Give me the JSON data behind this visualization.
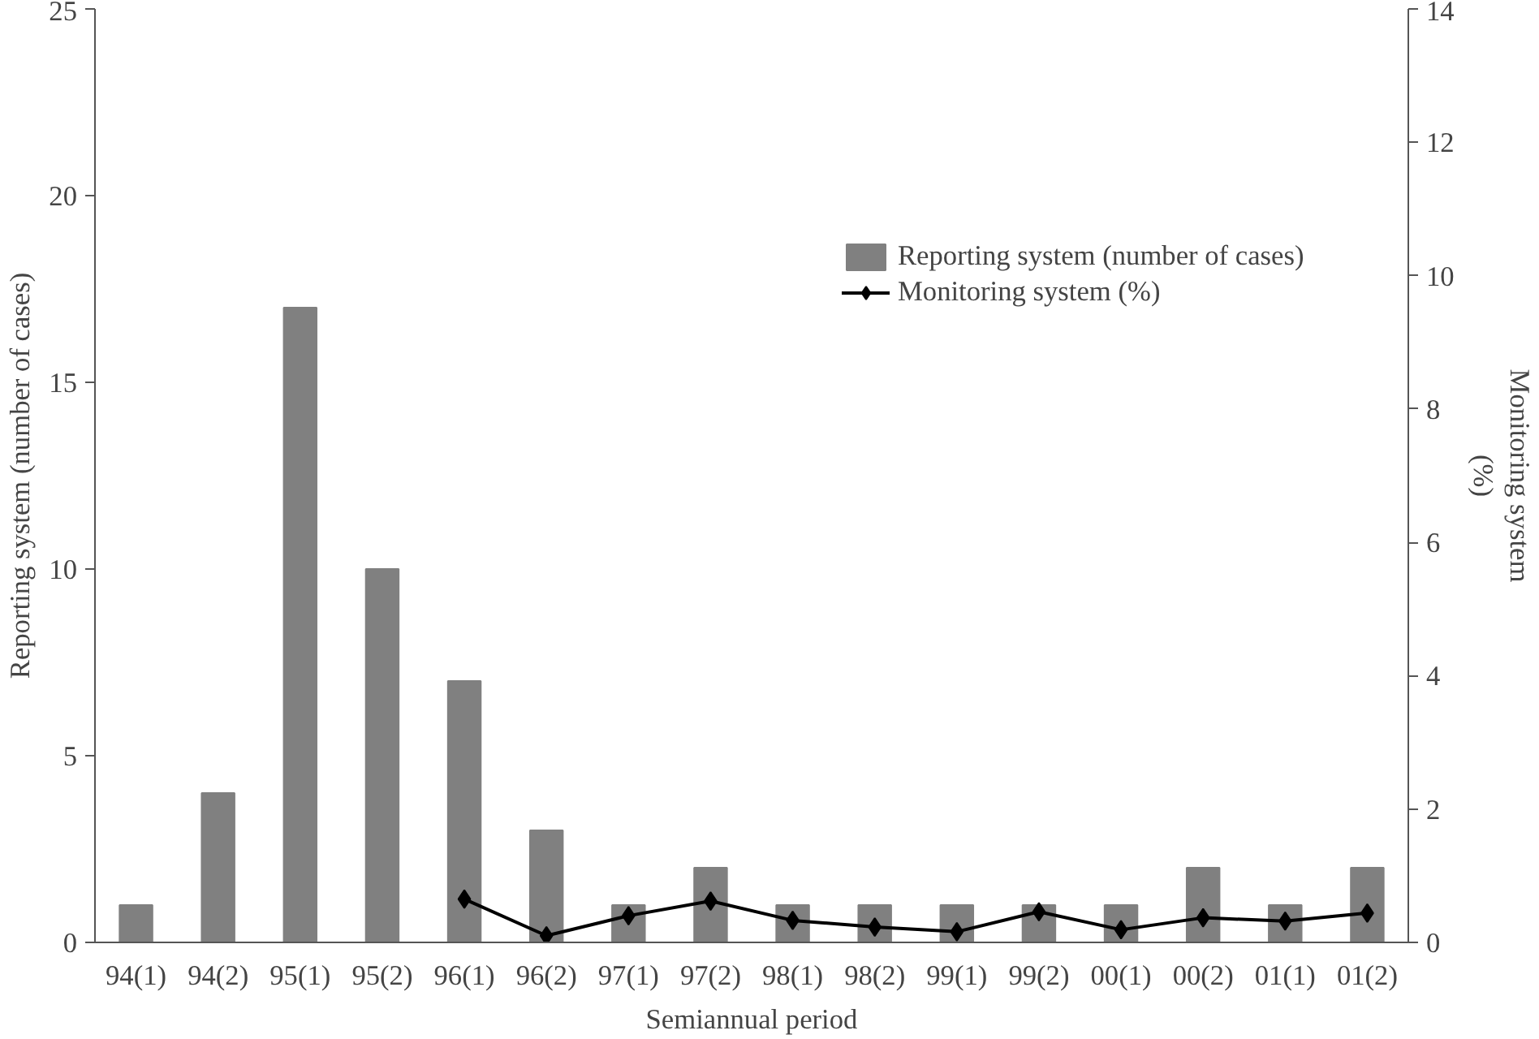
{
  "chart_data": {
    "type": "bar",
    "xlabel": "Semiannual period",
    "ylabel": "Reporting system (number of cases)",
    "y2label": "Monitoring system\n(%)",
    "categories": [
      "94(1)",
      "94(2)",
      "95(1)",
      "95(2)",
      "96(1)",
      "96(2)",
      "97(1)",
      "97(2)",
      "98(1)",
      "98(2)",
      "99(1)",
      "99(2)",
      "00(1)",
      "00(2)",
      "01(1)",
      "01(2)"
    ],
    "series": [
      {
        "name": "Reporting system (number of cases)",
        "color": "#808080",
        "values": [
          1,
          4,
          17,
          10,
          7,
          3,
          1,
          2,
          1,
          1,
          1,
          1,
          1,
          2,
          1,
          2
        ]
      },
      {
        "name": "Monitoring system (%)",
        "type": "line",
        "axis": "y2",
        "color": "#000000",
        "marker": "diamond",
        "values": [
          null,
          null,
          null,
          null,
          0.65,
          0.1,
          0.4,
          0.62,
          0.33,
          0.23,
          0.16,
          0.46,
          0.19,
          0.37,
          0.32,
          0.44
        ]
      }
    ],
    "ylim": [
      0,
      25
    ],
    "yticks": [
      0,
      5,
      10,
      15,
      20,
      25
    ],
    "y2lim": [
      0,
      14
    ],
    "y2ticks": [
      0,
      2,
      4,
      6,
      8,
      10,
      12,
      14
    ],
    "grid": false,
    "legend": "top right"
  }
}
